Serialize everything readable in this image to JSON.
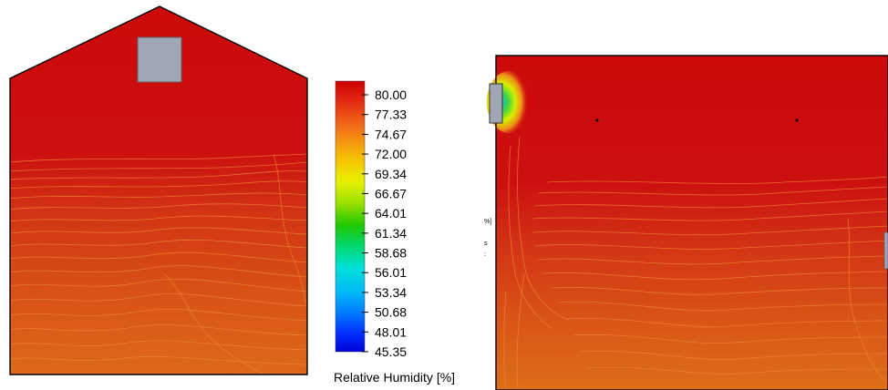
{
  "legend": {
    "title": "Relative Humidity [%]",
    "ticks": [
      "80.00",
      "77.33",
      "74.67",
      "72.00",
      "69.34",
      "66.67",
      "64.01",
      "61.34",
      "58.68",
      "56.01",
      "53.34",
      "50.68",
      "48.01",
      "45.35"
    ],
    "colors": [
      "#cc0000",
      "#e03010",
      "#f06018",
      "#f59a10",
      "#f4c800",
      "#e8f000",
      "#9ae000",
      "#22c800",
      "#00d870",
      "#00e0d8",
      "#00b8f8",
      "#0078ff",
      "#0030ff",
      "#0000e0"
    ]
  },
  "stray_text": {
    "a": "%]",
    "b": "s",
    "c": ":"
  },
  "palette": {
    "field_red": "#cc1010",
    "field_orange": "#d64a14",
    "field_deep_orange": "#dd6a18",
    "contour_line": "#ef8a36",
    "vent_gray": "#a0a6b6",
    "outline": "#000000"
  }
}
